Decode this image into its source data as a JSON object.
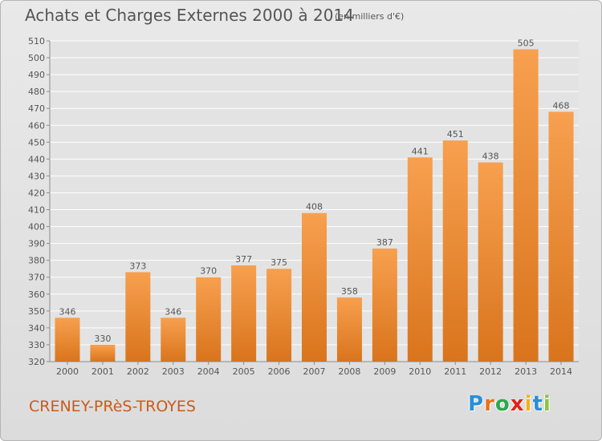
{
  "title": "Achats et Charges Externes 2000 à 2014",
  "subtitle": "(en milliers d'€)",
  "commune": "CRENEY-PRèS-TROYES",
  "logo": {
    "letters": [
      "P",
      "r",
      "o",
      "x",
      "i",
      "t",
      "i"
    ],
    "colors": [
      "#2a8fd6",
      "#e8731c",
      "#2ea84a",
      "#e2231a",
      "#f2b01c",
      "#2a8fd6",
      "#8ac43f"
    ]
  },
  "colors": {
    "bar_light": "#f7a04f",
    "bar_dark": "#d9741c",
    "grid": "#ffffff",
    "text": "#555555"
  },
  "chart_data": {
    "type": "bar",
    "title": "Achats et Charges Externes 2000 à 2014",
    "subtitle": "(en milliers d'€)",
    "categories": [
      "2000",
      "2001",
      "2002",
      "2003",
      "2004",
      "2005",
      "2006",
      "2007",
      "2008",
      "2009",
      "2010",
      "2011",
      "2012",
      "2013",
      "2014"
    ],
    "values": [
      346,
      330,
      373,
      346,
      370,
      377,
      375,
      408,
      358,
      387,
      441,
      451,
      438,
      505,
      468
    ],
    "ylim": [
      320,
      510
    ],
    "yticks": [
      320,
      330,
      340,
      350,
      360,
      370,
      380,
      390,
      400,
      410,
      420,
      430,
      440,
      450,
      460,
      470,
      480,
      490,
      500,
      510
    ],
    "grid": true
  }
}
